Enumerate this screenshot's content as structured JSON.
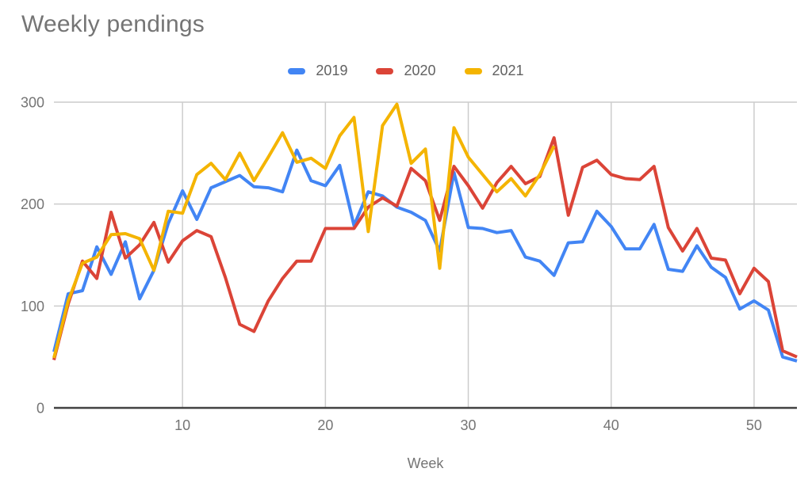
{
  "title": "Weekly pendings",
  "legend": {
    "items": [
      {
        "label": "2019",
        "color": "#4285F4"
      },
      {
        "label": "2020",
        "color": "#DB4437"
      },
      {
        "label": "2021",
        "color": "#F4B400"
      }
    ]
  },
  "axes": {
    "x_label": "Week",
    "x_tick_labels": [
      "10",
      "20",
      "30",
      "40",
      "50"
    ],
    "y_tick_labels": [
      "0",
      "100",
      "200",
      "300"
    ]
  },
  "colors": {
    "gridline": "#cccccc",
    "baseline": "#424242",
    "tick_text": "#757575",
    "title_text": "#757575",
    "legend_text": "#616161"
  },
  "chart_data": {
    "type": "line",
    "title": "Weekly pendings",
    "xlabel": "Week",
    "ylabel": "",
    "xlim": [
      1,
      53
    ],
    "ylim": [
      0,
      300
    ],
    "x_start_week": 1,
    "x_ticks": [
      10,
      20,
      30,
      40,
      50
    ],
    "y_ticks": [
      0,
      100,
      200,
      300
    ],
    "grid": true,
    "legend_position": "top",
    "series": [
      {
        "name": "2019",
        "color": "#4285F4",
        "values": [
          55,
          112,
          115,
          158,
          131,
          163,
          107,
          135,
          181,
          213,
          185,
          216,
          222,
          228,
          217,
          216,
          212,
          253,
          223,
          218,
          238,
          179,
          212,
          208,
          197,
          192,
          184,
          154,
          231,
          177,
          176,
          172,
          174,
          148,
          144,
          130,
          162,
          163,
          193,
          178,
          156,
          156,
          180,
          136,
          134,
          159,
          138,
          128,
          97,
          105,
          96,
          50,
          46
        ]
      },
      {
        "name": "2020",
        "color": "#DB4437",
        "values": [
          47,
          102,
          144,
          127,
          192,
          147,
          160,
          182,
          143,
          164,
          174,
          168,
          128,
          82,
          75,
          105,
          127,
          144,
          144,
          176,
          176,
          176,
          197,
          206,
          198,
          235,
          223,
          184,
          237,
          218,
          196,
          221,
          237,
          220,
          227,
          265,
          189,
          236,
          243,
          229,
          225,
          224,
          237,
          177,
          154,
          176,
          147,
          145,
          112,
          137,
          124,
          56,
          50
        ]
      },
      {
        "name": "2021",
        "color": "#F4B400",
        "values": [
          49,
          105,
          142,
          148,
          170,
          171,
          166,
          135,
          193,
          191,
          229,
          240,
          224,
          250,
          223,
          246,
          270,
          241,
          245,
          235,
          267,
          285,
          173,
          277,
          298,
          240,
          254,
          137,
          275,
          246,
          229,
          212,
          225,
          208,
          229,
          257
        ]
      }
    ]
  }
}
